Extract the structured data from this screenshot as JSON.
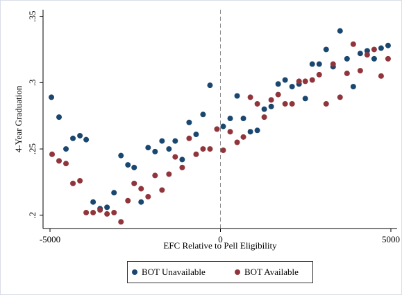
{
  "chart_data": {
    "type": "scatter",
    "xlabel": "EFC Relative to Pell Eligibility",
    "ylabel": "4-Year Graduation",
    "xlim": [
      -5204,
      5184
    ],
    "ylim": [
      0.19,
      0.355
    ],
    "xticks": [
      -5000,
      0,
      5000
    ],
    "yticks": [
      {
        "value": 0.2,
        "label": ".2"
      },
      {
        "value": 0.25,
        "label": ".25"
      },
      {
        "value": 0.3,
        "label": ".3"
      },
      {
        "value": 0.35,
        "label": ".35"
      }
    ],
    "vline": 0,
    "legend": "bottom",
    "series": [
      {
        "name": "BOT Unavailable",
        "color": "#1a476f",
        "x": [
          -4959,
          -4735,
          -4531,
          -4327,
          -4122,
          -3939,
          -3735,
          -3531,
          -3327,
          -3122,
          -2918,
          -2714,
          -2531,
          -2327,
          -2122,
          -1918,
          -1714,
          -1510,
          -1327,
          -1122,
          -918,
          -714,
          -510,
          -306,
          82,
          286,
          490,
          673,
          878,
          1082,
          1286,
          1490,
          1694,
          1898,
          2102,
          2306,
          2490,
          2694,
          2898,
          3102,
          3306,
          3510,
          3714,
          3898,
          4102,
          4306,
          4510,
          4714,
          4918
        ],
        "values": [
          0.289,
          0.274,
          0.25,
          0.258,
          0.26,
          0.257,
          0.21,
          0.205,
          0.206,
          0.217,
          0.245,
          0.238,
          0.236,
          0.21,
          0.251,
          0.248,
          0.256,
          0.25,
          0.256,
          0.242,
          0.27,
          0.261,
          0.276,
          0.298,
          0.267,
          0.273,
          0.29,
          0.273,
          0.263,
          0.264,
          0.28,
          0.282,
          0.299,
          0.302,
          0.297,
          0.299,
          0.288,
          0.314,
          0.314,
          0.325,
          0.312,
          0.339,
          0.318,
          0.297,
          0.322,
          0.324,
          0.318,
          0.326,
          0.328
        ]
      },
      {
        "name": "BOT Available",
        "color": "#90353b",
        "x": [
          -4939,
          -4735,
          -4531,
          -4327,
          -4122,
          -3939,
          -3735,
          -3531,
          -3327,
          -3122,
          -2918,
          -2714,
          -2531,
          -2327,
          -2122,
          -1918,
          -1714,
          -1510,
          -1327,
          -1122,
          -918,
          -714,
          -510,
          -306,
          -102,
          82,
          286,
          490,
          673,
          878,
          1082,
          1286,
          1490,
          1694,
          1898,
          2102,
          2306,
          2490,
          2694,
          2898,
          3102,
          3306,
          3510,
          3714,
          3898,
          4102,
          4306,
          4510,
          4714,
          4918
        ],
        "values": [
          0.246,
          0.241,
          0.239,
          0.224,
          0.226,
          0.202,
          0.202,
          0.204,
          0.201,
          0.202,
          0.195,
          0.211,
          0.224,
          0.22,
          0.214,
          0.23,
          0.219,
          0.231,
          0.244,
          0.236,
          0.258,
          0.246,
          0.25,
          0.25,
          0.265,
          0.249,
          0.263,
          0.255,
          0.259,
          0.289,
          0.284,
          0.274,
          0.287,
          0.291,
          0.284,
          0.284,
          0.301,
          0.301,
          0.302,
          0.306,
          0.284,
          0.314,
          0.289,
          0.307,
          0.329,
          0.309,
          0.321,
          0.325,
          0.305,
          0.318
        ]
      }
    ]
  }
}
